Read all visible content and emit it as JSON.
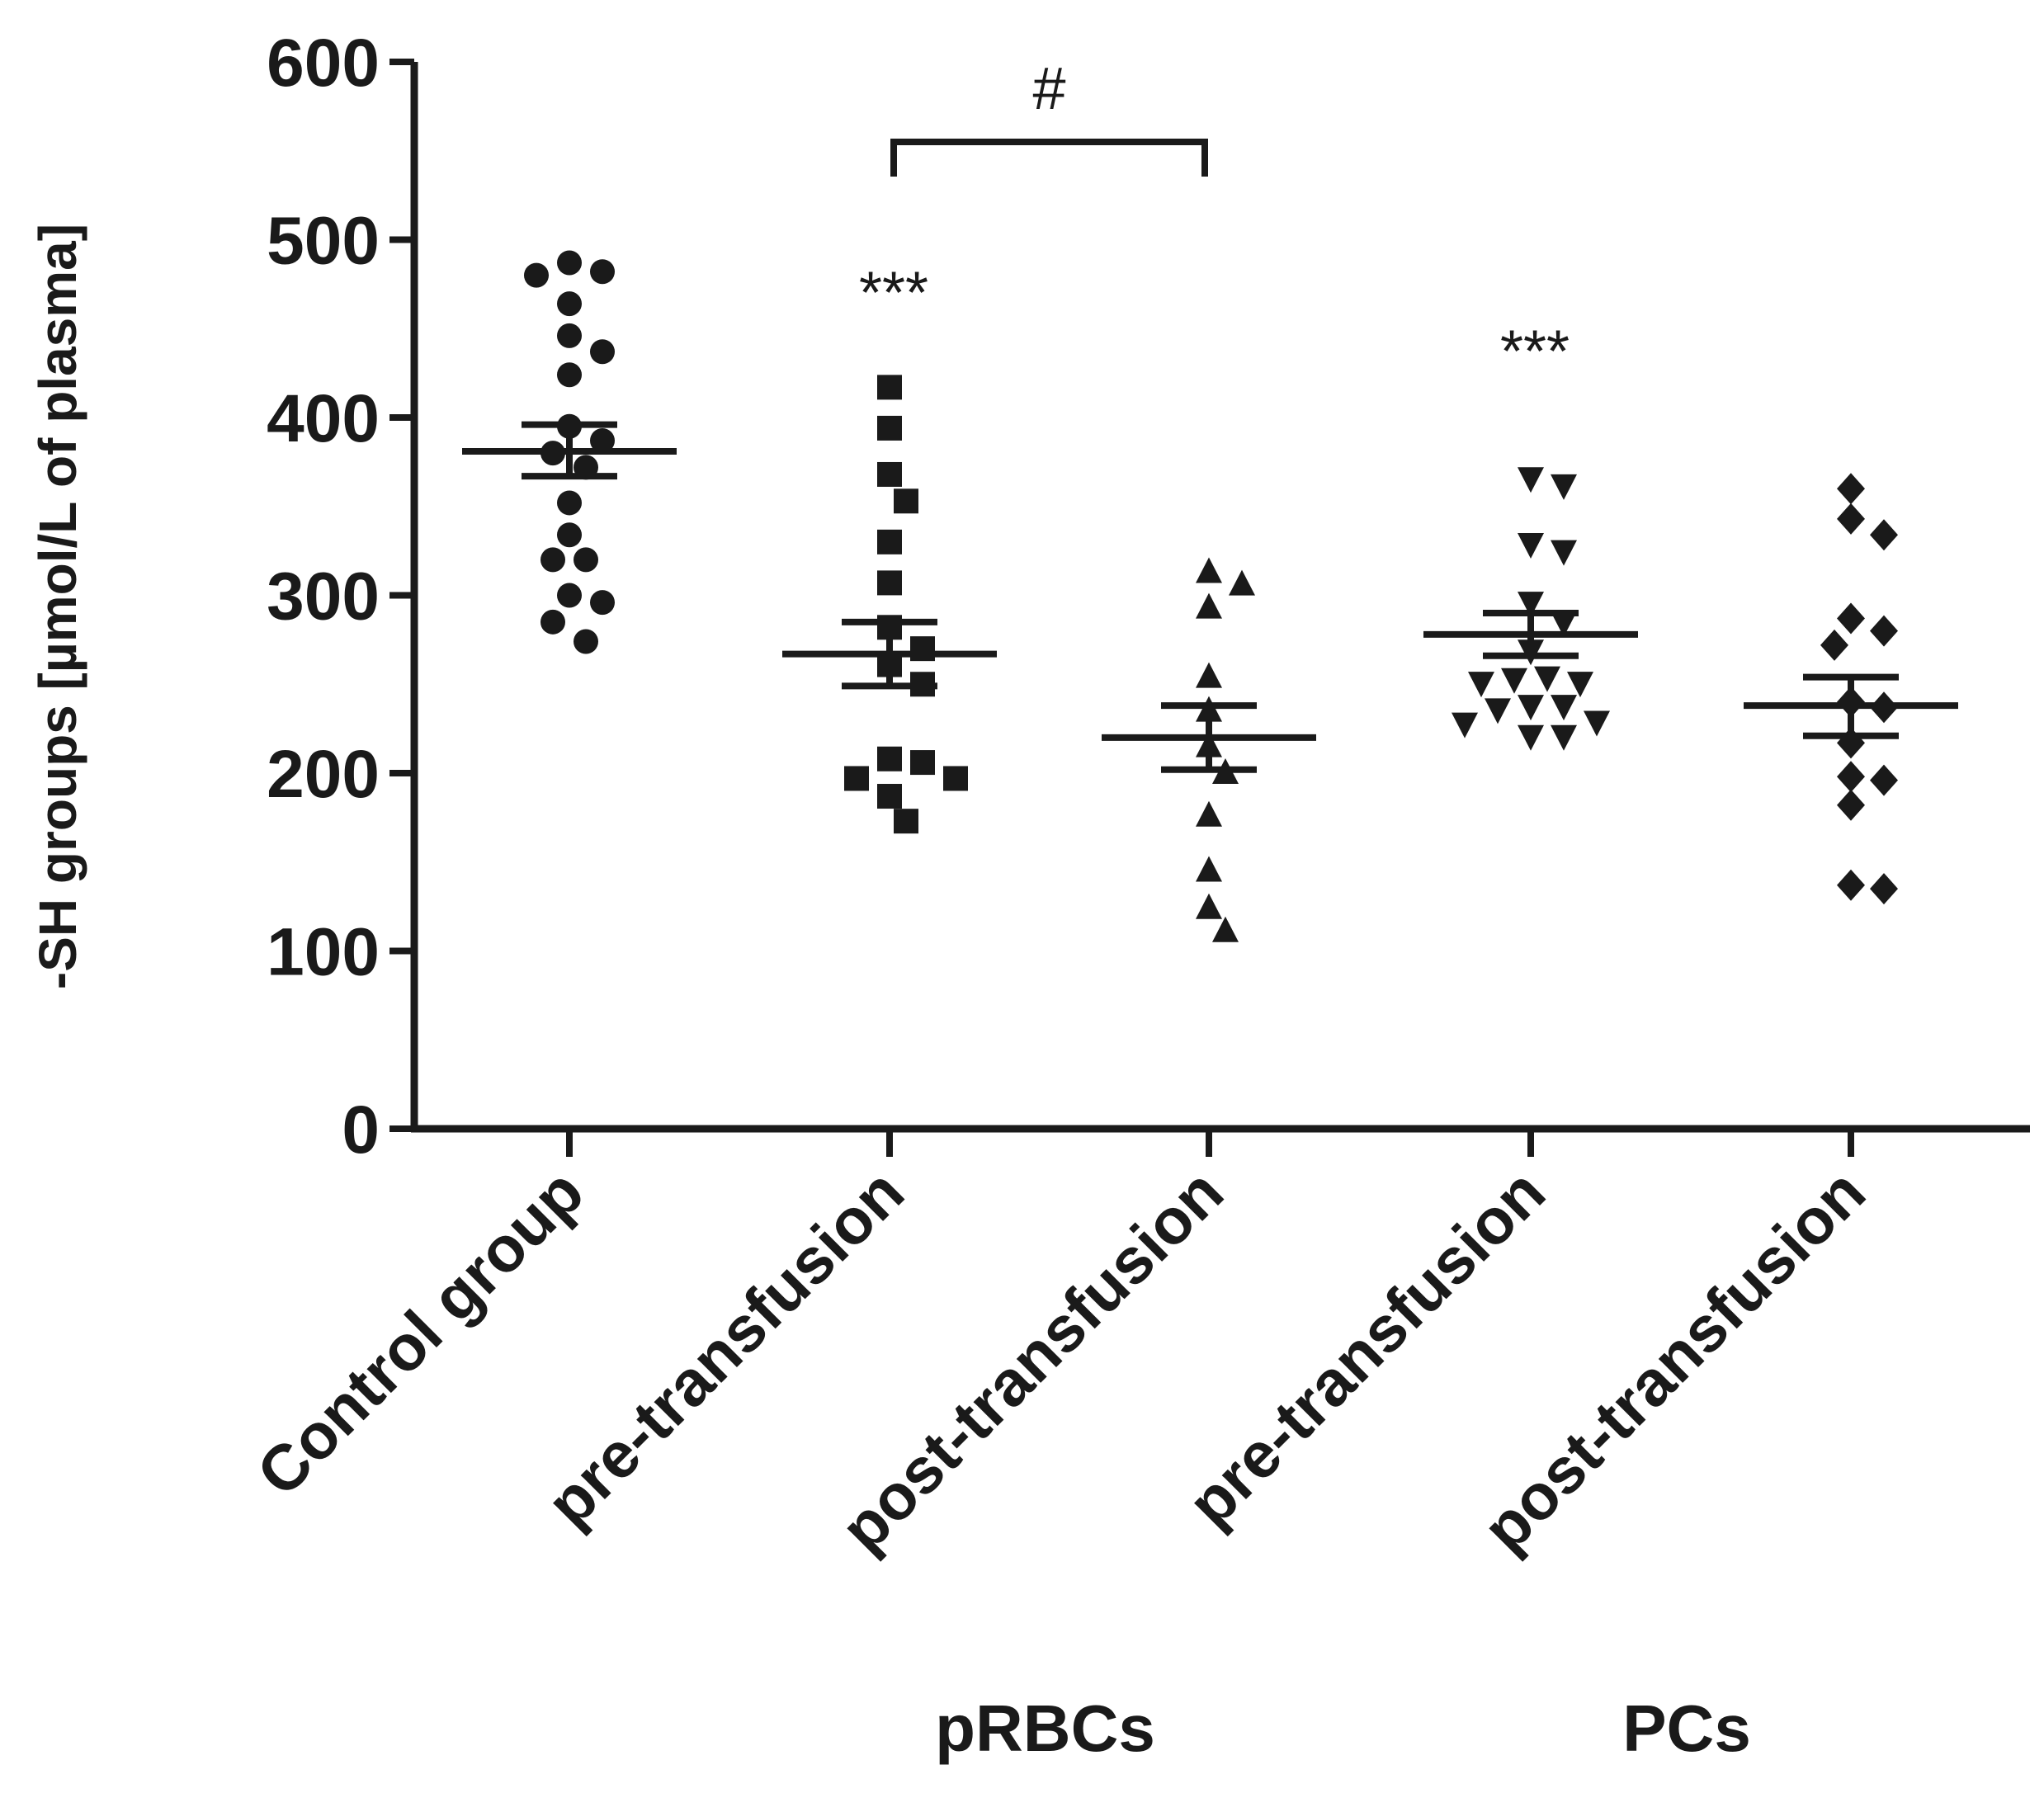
{
  "chart_data": {
    "type": "scatter",
    "title": "",
    "ylabel": "-SH groups [µmol/L of plasma]",
    "xlabel": "",
    "ylim": [
      0,
      600
    ],
    "yticks": [
      0,
      100,
      200,
      300,
      400,
      500,
      600
    ],
    "categories": [
      "Control group",
      "pre-transfusion",
      "post-transfusion",
      "pre-transfusion",
      "post-transfusion"
    ],
    "group_labels": [
      {
        "label": "pRBCs",
        "spans": [
          1,
          2
        ]
      },
      {
        "label": "PCs",
        "spans": [
          3,
          4
        ]
      }
    ],
    "series": [
      {
        "name": "Control group",
        "marker": "circle",
        "mean": 381,
        "sem_low": 367,
        "sem_high": 396,
        "values": [
          487,
          482,
          480,
          464,
          446,
          437,
          424,
          395,
          387,
          380,
          372,
          352,
          334,
          320,
          320,
          300,
          296,
          285,
          274
        ]
      },
      {
        "name": "pRBCs pre-transfusion",
        "marker": "square",
        "mean": 267,
        "sem_low": 249,
        "sem_high": 285,
        "values": [
          417,
          394,
          368,
          353,
          330,
          307,
          282,
          270,
          261,
          250,
          208,
          206,
          197,
          197,
          187,
          173
        ]
      },
      {
        "name": "pRBCs post-transfusion",
        "marker": "triangle-up",
        "mean": 220,
        "sem_low": 202,
        "sem_high": 238,
        "values": [
          313,
          306,
          293,
          254,
          235,
          215,
          200,
          176,
          145,
          124,
          111
        ]
      },
      {
        "name": "PCs pre-transfusion",
        "marker": "triangle-down",
        "mean": 278,
        "sem_low": 266,
        "sem_high": 290,
        "values": [
          366,
          362,
          329,
          325,
          296,
          285,
          269,
          254,
          253,
          251,
          251,
          238,
          238,
          236,
          229,
          228,
          221,
          221
        ]
      },
      {
        "name": "PCs post-transfusion",
        "marker": "diamond",
        "mean": 238,
        "sem_low": 221,
        "sem_high": 254,
        "values": [
          360,
          343,
          334,
          287,
          280,
          272,
          240,
          237,
          217,
          198,
          196,
          182,
          137,
          135
        ]
      }
    ],
    "annotations": [
      {
        "text": "***",
        "category_index": 1,
        "y": 480
      },
      {
        "text": "***",
        "category_index": 3,
        "y": 447
      },
      {
        "text": "#",
        "between": [
          1,
          2
        ],
        "bracket_y": 555
      }
    ]
  }
}
